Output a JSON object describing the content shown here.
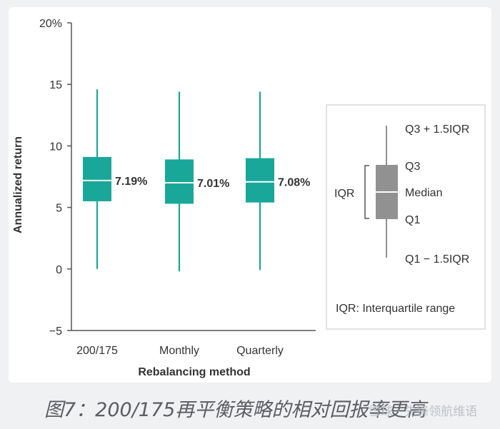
{
  "caption": "图7：200/175再平衡策略的相对回报率更高",
  "watermark": "雪球 · 先锋领航维语",
  "colors": {
    "box": "#19a79a",
    "legend_box": "#919191",
    "axis": "#555555",
    "text": "#333333"
  },
  "chart_data": {
    "type": "boxplot",
    "xlabel": "Rebalancing method",
    "ylabel": "Annualized return",
    "ylim": [
      -5,
      20
    ],
    "yticks": [
      -5,
      0,
      5,
      10,
      15,
      20
    ],
    "ytick_labels": [
      "−5",
      "0",
      "5",
      "10",
      "15",
      "20%"
    ],
    "grid": false,
    "categories": [
      "200/175",
      "Monthly",
      "Quarterly"
    ],
    "boxes": [
      {
        "category": "200/175",
        "whisker_low": 0.0,
        "q1": 5.5,
        "median": 7.19,
        "q3": 9.1,
        "whisker_high": 14.6,
        "label": "7.19%"
      },
      {
        "category": "Monthly",
        "whisker_low": -0.2,
        "q1": 5.3,
        "median": 7.01,
        "q3": 8.9,
        "whisker_high": 14.4,
        "label": "7.01%"
      },
      {
        "category": "Quarterly",
        "whisker_low": -0.1,
        "q1": 5.4,
        "median": 7.08,
        "q3": 9.0,
        "whisker_high": 14.4,
        "label": "7.08%"
      }
    ],
    "legend": {
      "placement": "right",
      "upper_whisker_label": "Q3 + 1.5IQR",
      "q3_label": "Q3",
      "median_label": "Median",
      "q1_label": "Q1",
      "lower_whisker_label": "Q1 − 1.5IQR",
      "iqr_label": "IQR",
      "note": "IQR: Interquartile range"
    }
  }
}
